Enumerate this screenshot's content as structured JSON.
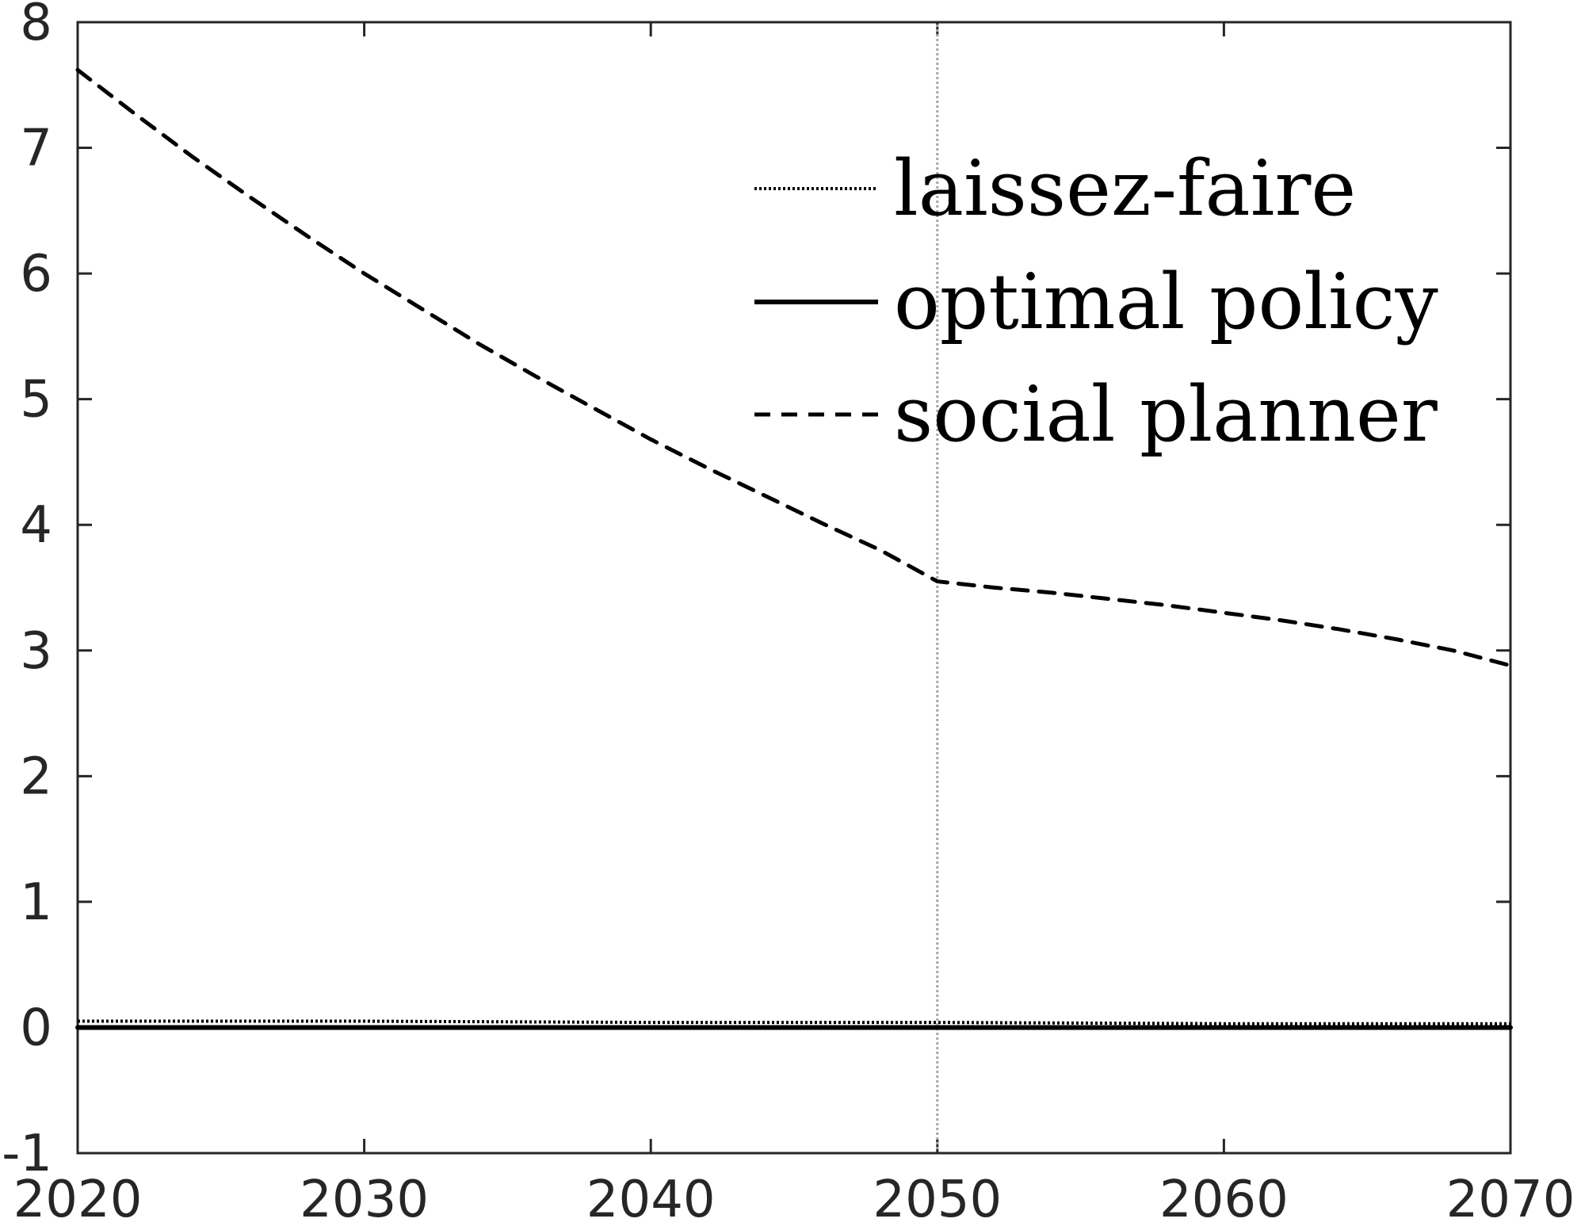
{
  "chart_data": {
    "type": "line",
    "title": "",
    "xlabel": "",
    "ylabel": "",
    "xlim": [
      2020,
      2070
    ],
    "ylim": [
      -1,
      8
    ],
    "x_ticks": [
      2020,
      2030,
      2040,
      2050,
      2060,
      2070
    ],
    "y_ticks": [
      -1,
      0,
      1,
      2,
      3,
      4,
      5,
      6,
      7,
      8
    ],
    "x_tick_labels": [
      "2020",
      "2030",
      "2040",
      "2050",
      "2060",
      "2070"
    ],
    "y_tick_labels": [
      "-1",
      "0",
      "1",
      "2",
      "3",
      "4",
      "5",
      "6",
      "7",
      "8"
    ],
    "grid": false,
    "reference_line": {
      "x": 2050,
      "style": "dotted",
      "color": "#a6a6a6"
    },
    "legend": {
      "placement": "top-right",
      "entries": [
        "laissez-faire",
        "optimal policy",
        "social planner"
      ]
    },
    "series": [
      {
        "name": "laissez-faire",
        "style": "dotted",
        "color": "#000000",
        "x": [
          2020,
          2030,
          2040,
          2050,
          2060,
          2070
        ],
        "y": [
          0.05,
          0.05,
          0.04,
          0.04,
          0.03,
          0.03
        ]
      },
      {
        "name": "optimal policy",
        "style": "solid",
        "color": "#000000",
        "x": [
          2020,
          2030,
          2040,
          2050,
          2060,
          2070
        ],
        "y": [
          0.0,
          0.0,
          0.0,
          0.0,
          0.0,
          0.0
        ]
      },
      {
        "name": "social planner",
        "style": "dashed",
        "color": "#000000",
        "x": [
          2020,
          2022,
          2024,
          2026,
          2028,
          2030,
          2032,
          2034,
          2036,
          2038,
          2040,
          2042,
          2044,
          2046,
          2048,
          2050,
          2052,
          2054,
          2056,
          2058,
          2060,
          2062,
          2064,
          2066,
          2068,
          2070
        ],
        "y": [
          7.62,
          7.27,
          6.93,
          6.61,
          6.3,
          6.0,
          5.72,
          5.44,
          5.18,
          4.93,
          4.68,
          4.45,
          4.23,
          4.01,
          3.8,
          3.55,
          3.5,
          3.46,
          3.41,
          3.36,
          3.3,
          3.24,
          3.17,
          3.09,
          3.0,
          2.88
        ]
      }
    ]
  }
}
